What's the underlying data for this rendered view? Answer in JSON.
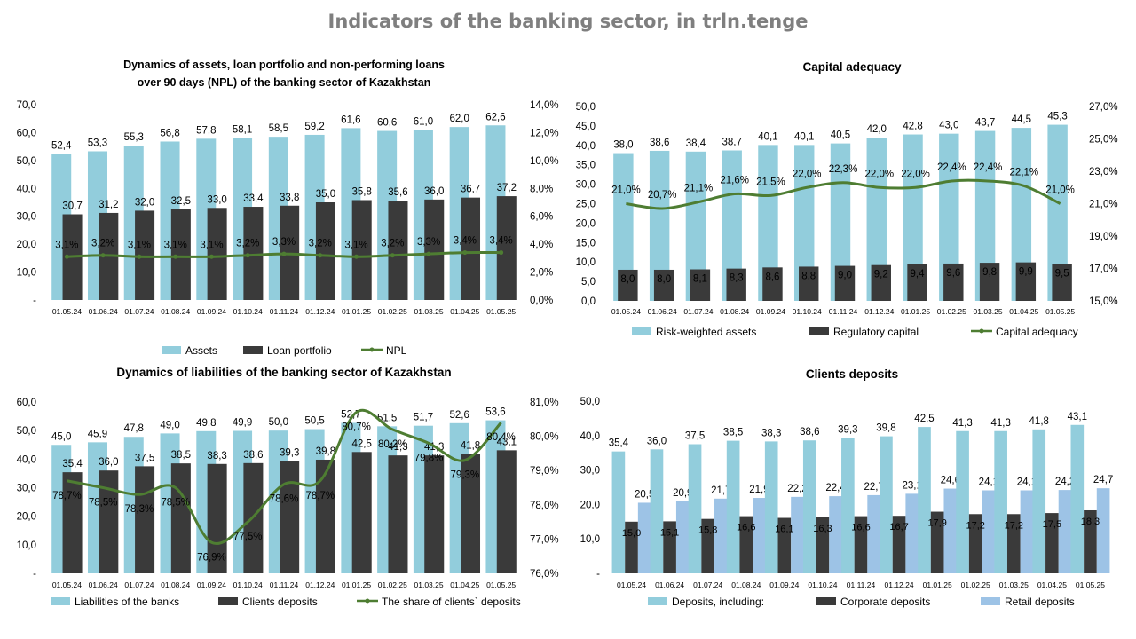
{
  "page": {
    "title": "Indicators of the banking sector, in trln.tenge"
  },
  "chart_data": [
    {
      "id": "tl",
      "type": "bar",
      "title": [
        "Dynamics  of  assets, loan  portfolio  and  non-performing  loans",
        "over  90  days  (NPL)  of  the  banking  sector  of  Kazakhstan"
      ],
      "categories": [
        "01.05.24",
        "01.06.24",
        "01.07.24",
        "01.08.24",
        "01.09.24",
        "01.10.24",
        "01.11.24",
        "01.12.24",
        "01.01.25",
        "01.02.25",
        "01.03.25",
        "01.04.25",
        "01.05.25"
      ],
      "series": [
        {
          "name": "Assets",
          "kind": "bar",
          "color": "#92cddc",
          "values": [
            52.4,
            53.3,
            55.3,
            56.8,
            57.8,
            58.1,
            58.5,
            59.2,
            61.6,
            60.6,
            61.0,
            62.0,
            62.6
          ],
          "labels": [
            "52,4",
            "53,3",
            "55,3",
            "56,8",
            "57,8",
            "58,1",
            "58,5",
            "59,2",
            "61,6",
            "60,6",
            "61,0",
            "62,0",
            "62,6"
          ]
        },
        {
          "name": "Loan portfolio",
          "kind": "bar",
          "color": "#3a3a3a",
          "values": [
            30.7,
            31.2,
            32.0,
            32.5,
            33.0,
            33.4,
            33.8,
            35.0,
            35.8,
            35.6,
            36.0,
            36.7,
            37.2
          ],
          "labels": [
            "30,7",
            "31,2",
            "32,0",
            "32,5",
            "33,0",
            "33,4",
            "33,8",
            "35,0",
            "35,8",
            "35,6",
            "36,0",
            "36,7",
            "37,2"
          ]
        },
        {
          "name": "NPL",
          "kind": "line",
          "axis": "right",
          "color": "#4e7d32",
          "values": [
            3.1,
            3.2,
            3.1,
            3.1,
            3.1,
            3.2,
            3.3,
            3.2,
            3.1,
            3.2,
            3.3,
            3.4,
            3.4
          ],
          "labels": [
            "3,1%",
            "3,2%",
            "3,1%",
            "3,1%",
            "3,1%",
            "3,2%",
            "3,3%",
            "3,2%",
            "3,1%",
            "3,2%",
            "3,3%",
            "3,4%",
            "3,4%"
          ]
        }
      ],
      "y_left": {
        "min": 0,
        "max": 70,
        "step": 10,
        "ticks": [
          "-",
          "10,0",
          "20,0",
          "30,0",
          "40,0",
          "50,0",
          "60,0",
          "70,0"
        ]
      },
      "y_right": {
        "min": 0,
        "max": 14,
        "step": 2,
        "ticks": [
          "0,0%",
          "2,0%",
          "4,0%",
          "6,0%",
          "8,0%",
          "10,0%",
          "12,0%",
          "14,0%"
        ]
      },
      "legend": "bottom"
    },
    {
      "id": "tr",
      "type": "bar",
      "title": [
        "Capital adequacy"
      ],
      "categories": [
        "01.05.24",
        "01.06.24",
        "01.07.24",
        "01.08.24",
        "01.09.24",
        "01.10.24",
        "01.11.24",
        "01.12.24",
        "01.01.25",
        "01.02.25",
        "01.03.25",
        "01.04.25",
        "01.05.25"
      ],
      "series": [
        {
          "name": "Risk-weighted assets",
          "kind": "bar",
          "color": "#92cddc",
          "values": [
            38.0,
            38.6,
            38.4,
            38.7,
            40.1,
            40.1,
            40.5,
            42.0,
            42.8,
            43.0,
            43.7,
            44.5,
            45.3
          ],
          "labels": [
            "38,0",
            "38,6",
            "38,4",
            "38,7",
            "40,1",
            "40,1",
            "40,5",
            "42,0",
            "42,8",
            "43,0",
            "43,7",
            "44,5",
            "45,3"
          ]
        },
        {
          "name": "Regulatory  capital",
          "kind": "bar",
          "color": "#3a3a3a",
          "values": [
            8.0,
            8.0,
            8.1,
            8.3,
            8.6,
            8.8,
            9.0,
            9.2,
            9.4,
            9.6,
            9.8,
            9.9,
            9.5
          ],
          "labels": [
            "8,0",
            "8,0",
            "8,1",
            "8,3",
            "8,6",
            "8,8",
            "9,0",
            "9,2",
            "9,4",
            "9,6",
            "9,8",
            "9,9",
            "9,5"
          ]
        },
        {
          "name": "Capital adequacy",
          "kind": "line",
          "axis": "right",
          "color": "#4e7d32",
          "values": [
            21.0,
            20.7,
            21.1,
            21.6,
            21.5,
            22.0,
            22.3,
            22.0,
            22.0,
            22.4,
            22.4,
            22.1,
            21.0
          ],
          "labels": [
            "21,0%",
            "20,7%",
            "21,1%",
            "21,6%",
            "21,5%",
            "22,0%",
            "22,3%",
            "22,0%",
            "22,0%",
            "22,4%",
            "22,4%",
            "22,1%",
            "21,0%"
          ]
        }
      ],
      "y_left": {
        "min": 0,
        "max": 50,
        "step": 5,
        "ticks": [
          "0,0",
          "5,0",
          "10,0",
          "15,0",
          "20,0",
          "25,0",
          "30,0",
          "35,0",
          "40,0",
          "45,0",
          "50,0"
        ]
      },
      "y_right": {
        "min": 15,
        "max": 27,
        "step": 2,
        "ticks": [
          "15,0%",
          "17,0%",
          "19,0%",
          "21,0%",
          "23,0%",
          "25,0%",
          "27,0%"
        ]
      },
      "legend": "bottom"
    },
    {
      "id": "bl",
      "type": "bar",
      "title": [
        "Dynamics  of  liabilities  of  the  banking sector of Kazakhstan"
      ],
      "categories": [
        "01.05.24",
        "01.06.24",
        "01.07.24",
        "01.08.24",
        "01.09.24",
        "01.10.24",
        "01.11.24",
        "01.12.24",
        "01.01.25",
        "01.02.25",
        "01.03.25",
        "01.04.25",
        "01.05.25"
      ],
      "series": [
        {
          "name": "Liabilities of the banks",
          "kind": "bar",
          "color": "#92cddc",
          "values": [
            45.0,
            45.9,
            47.8,
            49.0,
            49.8,
            49.9,
            50.0,
            50.5,
            52.7,
            51.5,
            51.7,
            52.6,
            53.6
          ],
          "labels": [
            "45,0",
            "45,9",
            "47,8",
            "49,0",
            "49,8",
            "49,9",
            "50,0",
            "50,5",
            "52,7",
            "51,5",
            "51,7",
            "52,6",
            "53,6"
          ]
        },
        {
          "name": "Clients deposits",
          "kind": "bar",
          "color": "#3a3a3a",
          "values": [
            35.4,
            36.0,
            37.5,
            38.5,
            38.3,
            38.6,
            39.3,
            39.8,
            42.5,
            41.3,
            41.3,
            41.8,
            43.1
          ],
          "labels": [
            "35,4",
            "36,0",
            "37,5",
            "38,5",
            "38,3",
            "38,6",
            "39,3",
            "39,8",
            "42,5",
            "41,3",
            "41,3",
            "41,8",
            "43,1"
          ]
        },
        {
          "name": "The share of clients` deposits",
          "kind": "line",
          "axis": "right",
          "color": "#4e7d32",
          "values": [
            78.7,
            78.5,
            78.3,
            78.5,
            76.9,
            77.5,
            78.6,
            78.7,
            80.7,
            80.2,
            79.8,
            79.3,
            80.4
          ],
          "labels": [
            "78,7%",
            "78,5%",
            "78,3%",
            "78,5%",
            "76,9%",
            "77,5%",
            "78,6%",
            "78,7%",
            "80,7%",
            "80,2%",
            "79,8%",
            "79,3%",
            "80,4%"
          ]
        }
      ],
      "y_left": {
        "min": 0,
        "max": 60,
        "step": 10,
        "ticks": [
          "-",
          "10,0",
          "20,0",
          "30,0",
          "40,0",
          "50,0",
          "60,0"
        ]
      },
      "y_right": {
        "min": 76,
        "max": 81,
        "step": 1,
        "ticks": [
          "76,0%",
          "77,0%",
          "78,0%",
          "79,0%",
          "80,0%",
          "81,0%"
        ]
      },
      "legend": "bottom"
    },
    {
      "id": "br",
      "type": "bar",
      "title": [
        "Clients deposits"
      ],
      "categories": [
        "01.05.24",
        "01.06.24",
        "01.07.24",
        "01.08.24",
        "01.09.24",
        "01.10.24",
        "01.11.24",
        "01.12.24",
        "01.01.25",
        "01.02.25",
        "01.03.25",
        "01.04.25",
        "01.05.25"
      ],
      "series": [
        {
          "name": "Deposits, including:",
          "kind": "bar",
          "color": "#92cddc",
          "values": [
            35.4,
            36.0,
            37.5,
            38.5,
            38.3,
            38.6,
            39.3,
            39.8,
            42.5,
            41.3,
            41.3,
            41.8,
            43.1
          ],
          "labels": [
            "35,4",
            "36,0",
            "37,5",
            "38,5",
            "38,3",
            "38,6",
            "39,3",
            "39,8",
            "42,5",
            "41,3",
            "41,3",
            "41,8",
            "43,1"
          ]
        },
        {
          "name": "Corporate deposits",
          "kind": "bar",
          "color": "#3a3a3a",
          "values": [
            15.0,
            15.1,
            15.8,
            16.6,
            16.1,
            16.3,
            16.6,
            16.7,
            17.9,
            17.2,
            17.2,
            17.5,
            18.3
          ],
          "labels": [
            "15,0",
            "15,1",
            "15,8",
            "16,6",
            "16,1",
            "16,3",
            "16,6",
            "16,7",
            "17,9",
            "17,2",
            "17,2",
            "17,5",
            "18,3"
          ]
        },
        {
          "name": "Retail deposits",
          "kind": "bar",
          "color": "#9dc3e6",
          "values": [
            20.5,
            20.9,
            21.7,
            21.9,
            22.2,
            22.4,
            22.7,
            23.1,
            24.6,
            24.1,
            24.1,
            24.2,
            24.7
          ],
          "labels": [
            "20,5",
            "20,9",
            "21,7",
            "21,9",
            "22,2",
            "22,4",
            "22,7",
            "23,1",
            "24,6",
            "24,1",
            "24,1",
            "24,2",
            "24,7"
          ]
        }
      ],
      "y_left": {
        "min": 0,
        "max": 50,
        "step": 10,
        "ticks": [
          "-",
          "10,0",
          "20,0",
          "30,0",
          "40,0",
          "50,0"
        ]
      },
      "legend": "bottom"
    }
  ]
}
